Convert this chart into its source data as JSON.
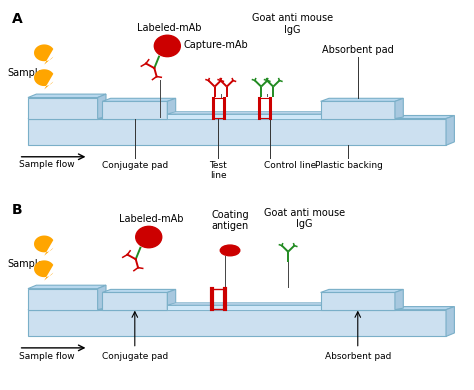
{
  "bg_color": "#ffffff",
  "strip_color": "#cce0f0",
  "strip_edge_color": "#7aafc8",
  "strip_dark": "#a8c8df",
  "red_color": "#cc0000",
  "green_color": "#228B22",
  "gold_color": "#FFA500",
  "panel_A_label": "A",
  "panel_B_label": "B",
  "text_sample": "Sample",
  "text_sample_flow": "Sample flow",
  "text_conj_pad": "Conjugate pad",
  "text_test_line": "Test\nline",
  "text_control_line": "Control line",
  "text_plastic_backing": "Plastic backing",
  "text_absorbent_pad": "Absorbent pad",
  "text_labeled_mab": "Labeled-mAb",
  "text_capture_mab": "Capture-mAb",
  "text_goat_anti": "Goat anti mouse\nIgG",
  "text_coating_antigen": "Coating\nantigen",
  "fontsize_label": 9,
  "fontsize_text": 7,
  "fontsize_panel": 10
}
